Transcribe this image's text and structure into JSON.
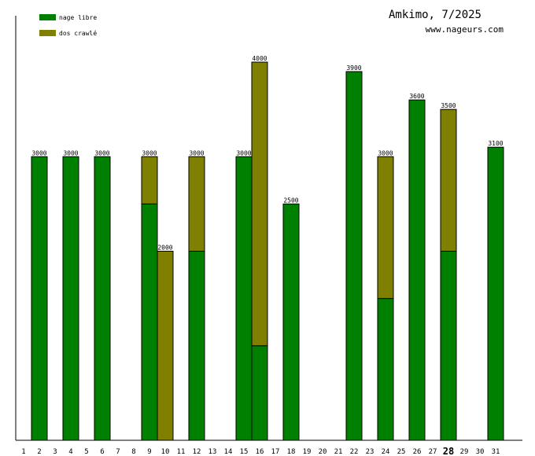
{
  "chart_data": {
    "type": "bar",
    "stacked": true,
    "title": "Amkimo, 7/2025",
    "subtitle": "www.nageurs.com",
    "xlabel": "",
    "ylabel": "",
    "ylim": [
      0,
      4000
    ],
    "grid": false,
    "legend_position": "top-left",
    "highlighted_category": "28",
    "categories": [
      "1",
      "2",
      "3",
      "4",
      "5",
      "6",
      "7",
      "8",
      "9",
      "10",
      "11",
      "12",
      "13",
      "14",
      "15",
      "16",
      "17",
      "18",
      "19",
      "20",
      "21",
      "22",
      "23",
      "24",
      "25",
      "26",
      "27",
      "28",
      "29",
      "30",
      "31"
    ],
    "series": [
      {
        "name": "nage libre",
        "color": "#008000",
        "values": [
          0,
          3000,
          0,
          3000,
          0,
          3000,
          0,
          0,
          2500,
          0,
          0,
          2000,
          0,
          0,
          3000,
          1000,
          0,
          2500,
          0,
          0,
          0,
          3900,
          0,
          1500,
          0,
          3600,
          0,
          2000,
          0,
          0,
          3100
        ]
      },
      {
        "name": "dos crawlé",
        "color": "#808000",
        "values": [
          0,
          0,
          0,
          0,
          0,
          0,
          0,
          0,
          500,
          2000,
          0,
          1000,
          0,
          0,
          0,
          3000,
          0,
          0,
          0,
          0,
          0,
          0,
          0,
          1500,
          0,
          0,
          0,
          1500,
          0,
          0,
          0
        ]
      }
    ],
    "totals_labels": [
      "",
      "3000",
      "",
      "3000",
      "",
      "3000",
      "",
      "",
      "3000",
      "2000",
      "",
      "3000",
      "",
      "",
      "3000",
      "4000",
      "",
      "2500",
      "",
      "",
      "",
      "3900",
      "",
      "3000",
      "",
      "3600",
      "",
      "3500",
      "",
      "",
      "3100"
    ]
  }
}
